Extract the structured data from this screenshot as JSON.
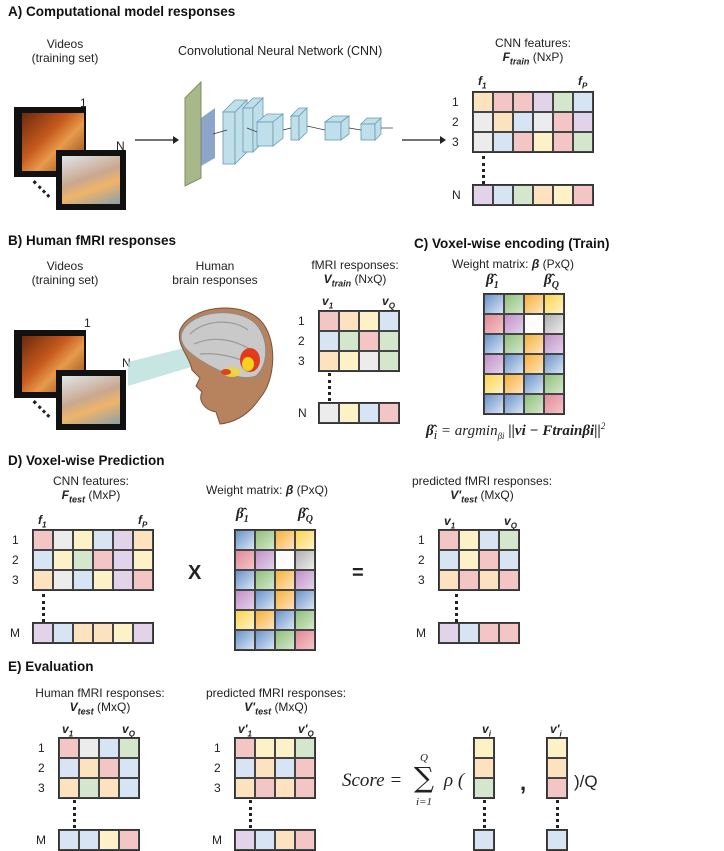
{
  "colors": {
    "orange": "#fde2c0",
    "red": "#f4c5c5",
    "purple": "#e2d3ea",
    "green": "#d4e6cc",
    "blue": "#d6e4f3",
    "gray": "#ececec",
    "yellow": "#fdf1c8",
    "white": "#ffffff"
  },
  "sectionA": {
    "title": "A) Computational model responses",
    "videos_label": "Videos",
    "videos_sub": "(training set)",
    "frame_1": "1",
    "frame_n": "N",
    "cnn_label": "Convolutional Neural Network (CNN)",
    "features_label": "CNN features:",
    "features_var": "F",
    "features_sub": "train",
    "features_dims": "(NxP)",
    "col_first": "f",
    "col_first_sub": "1",
    "col_last": "f",
    "col_last_sub": "P",
    "rows": [
      "1",
      "2",
      "3"
    ],
    "row_last": "N"
  },
  "sectionB": {
    "title": "B) Human fMRI responses",
    "videos_label": "Videos",
    "videos_sub": "(training set)",
    "human_label": "Human",
    "human_sub": "brain responses",
    "frame_1": "1",
    "frame_n": "N",
    "fmri_label": "fMRI responses:",
    "fmri_var": "V",
    "fmri_sub": "train",
    "fmri_dims": "(NxQ)",
    "col_first": "v",
    "col_first_sub": "1",
    "col_last": "v",
    "col_last_sub": "Q",
    "rows": [
      "1",
      "2",
      "3"
    ],
    "row_last": "N"
  },
  "sectionC": {
    "title": "C) Voxel-wise encoding (Train)",
    "weight_label": "Weight matrix:",
    "weight_var": "β",
    "weight_dims": "(PxQ)",
    "beta_first_sub": "1",
    "beta_last_sub": "Q",
    "formula_lhs": "β̂",
    "formula_lhs_sub": "i",
    "formula_eq": "=",
    "formula_argmin": "argmin",
    "formula_argmin_sub": "βi",
    "formula_body": "||vi − Ftrainβi||",
    "formula_pow": "2"
  },
  "sectionD": {
    "title": "D) Voxel-wise Prediction",
    "features_label": "CNN features:",
    "features_var": "F",
    "features_sub": "test",
    "features_dims": "(MxP)",
    "weight_label": "Weight matrix:",
    "weight_var": "β",
    "weight_dims": "(PxQ)",
    "pred_label": "predicted fMRI responses:",
    "pred_var": "V'",
    "pred_sub": "test",
    "pred_dims": "(MxQ)",
    "times": "X",
    "equals": "=",
    "rows": [
      "1",
      "2",
      "3"
    ],
    "row_last": "M"
  },
  "sectionE": {
    "title": "E) Evaluation",
    "human_label": "Human fMRI responses:",
    "human_var": "V",
    "human_sub": "test",
    "human_dims": "(MxQ)",
    "pred_label": "predicted fMRI responses:",
    "pred_var": "V'",
    "pred_sub": "test",
    "pred_dims": "(MxQ)",
    "rows": [
      "1",
      "2",
      "3"
    ],
    "row_last": "M",
    "score_lhs": "Score",
    "score_eq": "=",
    "sum_top": "Q",
    "sum_bottom": "i=1",
    "rho": "ρ (",
    "comma": ",",
    "tail": ")/Q",
    "vi": "v",
    "vi_sub": "i",
    "vpi": "v'",
    "vpi_sub": "i"
  }
}
